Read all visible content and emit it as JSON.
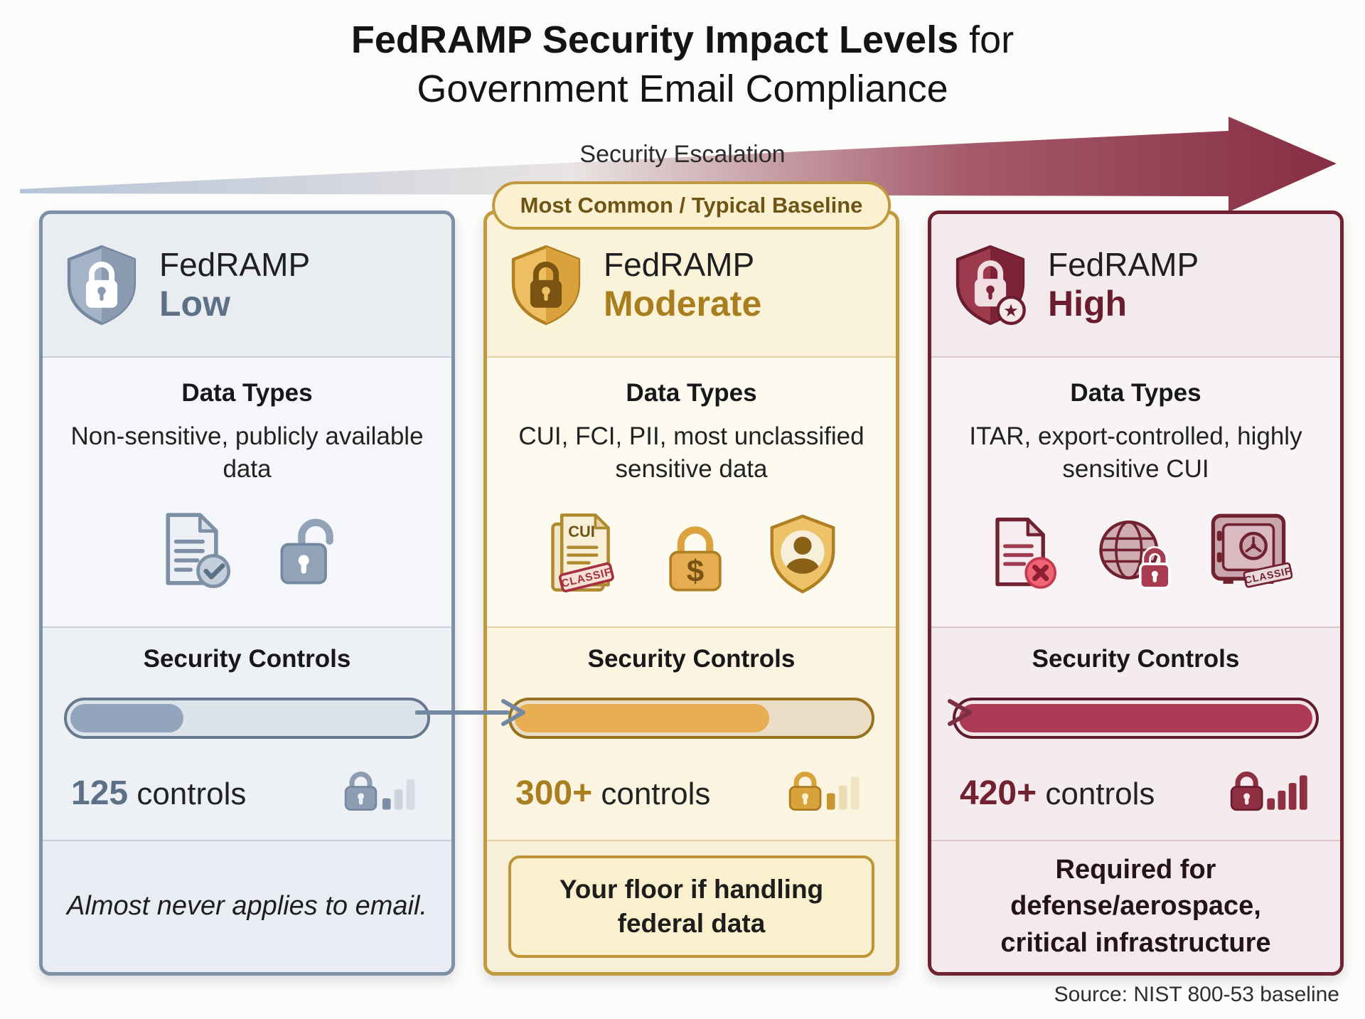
{
  "title": {
    "line1_bold": "FedRAMP Security Impact Levels",
    "line1_regular": " for",
    "line2": "Government Email Compliance"
  },
  "escalation_label": "Security Escalation",
  "badge_label": "Most Common / Typical Baseline",
  "source_note": "Source: NIST 800-53 baseline",
  "glyphs": {
    "check": "✓",
    "cross": "✕",
    "dollar": "$",
    "star": "★"
  },
  "colors": {
    "low_accent": "#5d7186",
    "moderate_accent": "#a97e1f",
    "high_accent": "#71212f",
    "arrow_gradient_start": "#b6c4d8",
    "arrow_gradient_end": "#872e44"
  },
  "cards": {
    "low": {
      "brand": "FedRAMP",
      "level": "Low",
      "data_title": "Data Types",
      "data_desc": "Non-sensitive, publicly available data",
      "controls_title": "Security Controls",
      "controls_count": "125",
      "controls_word": " controls",
      "progress_percent": 32,
      "note": "Almost never applies to email."
    },
    "moderate": {
      "brand": "FedRAMP",
      "level": "Moderate",
      "data_title": "Data Types",
      "data_desc": "CUI, FCI, PII, most unclassified sensitive data",
      "doc_label": "CUI",
      "stamp_label": "CLASSIF",
      "controls_title": "Security Controls",
      "controls_count": "300+",
      "controls_word": " controls",
      "progress_percent": 72,
      "note": "Your floor if handling federal data"
    },
    "high": {
      "brand": "FedRAMP",
      "level": "High",
      "data_title": "Data Types",
      "data_desc": "ITAR, export-controlled, highly sensitive CUI",
      "stamp_label": "CLASSIF",
      "controls_title": "Security Controls",
      "controls_count": "420+",
      "controls_word": " controls",
      "progress_percent": 100,
      "note": "Required for defense/aerospace, critical infrastructure"
    }
  }
}
